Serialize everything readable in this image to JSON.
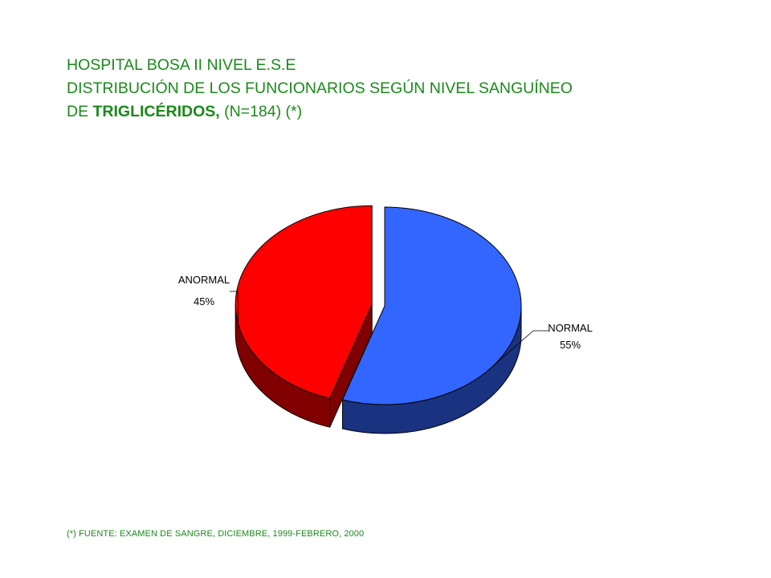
{
  "title": {
    "line1": "HOSPITAL BOSA II NIVEL E.S.E",
    "line2": "DISTRIBUCIÓN DE LOS FUNCIONARIOS SEGÚN NIVEL SANGUÍNEO",
    "line3_prefix": "DE ",
    "line3_bold": "TRIGLICÉRIDOS,",
    "line3_suffix": " (N=184) (*)"
  },
  "chart_data": {
    "type": "pie",
    "title": "HOSPITAL BOSA II NIVEL E.S.E DISTRIBUCIÓN DE LOS FUNCIONARIOS SEGÚN NIVEL SANGUÍNEO DE TRIGLICÉRIDOS, (N=184) (*)",
    "slices": [
      {
        "label": "NORMAL",
        "value": 55,
        "value_label": "55%",
        "color": "#3366ff",
        "side_color": "#1a3380"
      },
      {
        "label": "ANORMAL",
        "value": 45,
        "value_label": "45%",
        "color": "#ff0000",
        "side_color": "#800000",
        "exploded": true
      }
    ],
    "style": "3d"
  },
  "footnote": "(*) FUENTE: EXAMEN DE SANGRE, DICIEMBRE, 1999-FEBRERO,   2000"
}
